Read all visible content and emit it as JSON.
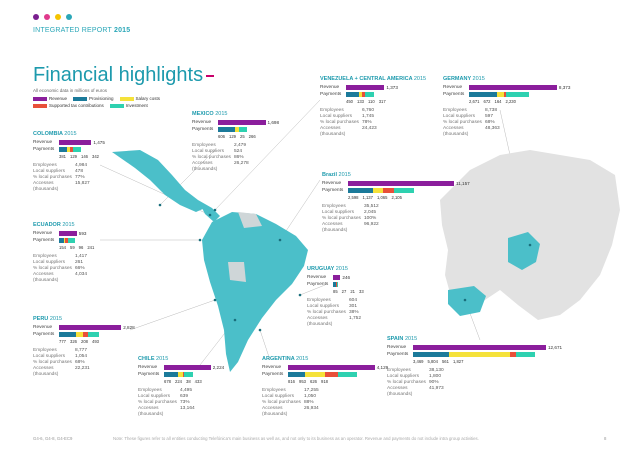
{
  "header": {
    "dots": [
      "#7a1f8f",
      "#e03a8c",
      "#f5c400",
      "#2aa7b8"
    ],
    "report_label": "INTEGRATED REPORT ",
    "report_year": "2015"
  },
  "title": "Financial highlights",
  "subtitle": "All economic data in millions of euros",
  "colors": {
    "revenue": "#8b1e9c",
    "provisioning": "#1b7a9a",
    "salary": "#f5e23a",
    "tax": "#e8503a",
    "investment": "#2ed1b0",
    "map_latam": "#4bbfc9",
    "map_europe": "#e2e2e2"
  },
  "legend": [
    {
      "key": "revenue",
      "label": "Revenue"
    },
    {
      "key": "provisioning",
      "label": "Provisioning"
    },
    {
      "key": "salary",
      "label": "Salary costs"
    },
    {
      "key": "tax",
      "label": "Supported tax contributions"
    },
    {
      "key": "investment",
      "label": "Investment"
    }
  ],
  "labels": {
    "revenue": "Revenue",
    "payments": "Payments",
    "employees": "Employees",
    "local_suppliers": "Local suppliers",
    "pct_local": "% local purchases",
    "accesses": "Accesses (thousands)"
  },
  "countries": [
    {
      "id": "colombia",
      "name": "COLOMBIA",
      "year": "2015",
      "revenue": "1,475",
      "revenue_value": 1475,
      "payments": [
        "381",
        "129",
        "146",
        "342"
      ],
      "payment_values": [
        381,
        129,
        146,
        342
      ],
      "stats": [
        "4,984",
        "478",
        "77%",
        "15,827"
      ]
    },
    {
      "id": "mexico",
      "name": "MEXICO",
      "year": "2015",
      "revenue": "1,698",
      "revenue_value": 1698,
      "payments": [
        "606",
        "129",
        "25",
        "266"
      ],
      "payment_values": [
        606,
        129,
        25,
        266
      ],
      "stats": [
        "2,479",
        "524",
        "86%",
        "26,278"
      ]
    },
    {
      "id": "venezuela",
      "name": "VENEZUELA + CENTRAL AMERICA",
      "year": "2015",
      "revenue": "1,373",
      "revenue_value": 1373,
      "payments": [
        "450",
        "133",
        "110",
        "317"
      ],
      "payment_values": [
        450,
        133,
        110,
        317
      ],
      "stats": [
        "6,760",
        "1,745",
        "78%",
        "24,423"
      ]
    },
    {
      "id": "germany",
      "name": "GERMANY",
      "year": "2015",
      "revenue": "8,373",
      "revenue_value": 8373,
      "payments": [
        "2,671",
        "672",
        "164",
        "2,230"
      ],
      "payment_values": [
        2671,
        672,
        164,
        2230
      ],
      "stats": [
        "8,738",
        "597",
        "68%",
        "48,363"
      ]
    },
    {
      "id": "ecuador",
      "name": "ECUADOR",
      "year": "2015",
      "revenue": "593",
      "revenue_value": 593,
      "payments": [
        "154",
        "59",
        "96",
        "241"
      ],
      "payment_values": [
        154,
        59,
        96,
        241
      ],
      "stats": [
        "1,417",
        "261",
        "66%",
        "4,034"
      ]
    },
    {
      "id": "brazil",
      "name": "Brazil",
      "year": "2015",
      "revenue": "11,157",
      "revenue_value": 11157,
      "payments": [
        "2,598",
        "1,137",
        "1,065",
        "2,105"
      ],
      "payment_values": [
        2598,
        1137,
        1065,
        2105
      ],
      "stats": [
        "35,512",
        "2,045",
        "100%",
        "96,922"
      ]
    },
    {
      "id": "uruguay",
      "name": "URUGUAY",
      "year": "2015",
      "revenue": "246",
      "revenue_value": 246,
      "payments": [
        "85",
        "27",
        "21",
        "33"
      ],
      "payment_values": [
        85,
        27,
        21,
        33
      ],
      "stats": [
        "604",
        "301",
        "38%",
        "1,752"
      ]
    },
    {
      "id": "peru",
      "name": "PERU",
      "year": "2015",
      "revenue": "2,828",
      "revenue_value": 2828,
      "payments": [
        "777",
        "326",
        "208",
        "493"
      ],
      "payment_values": [
        777,
        326,
        208,
        493
      ],
      "stats": [
        "8,777",
        "1,054",
        "68%",
        "22,231"
      ]
    },
    {
      "id": "chile",
      "name": "CHILE",
      "year": "2015",
      "revenue": "2,224",
      "revenue_value": 2224,
      "payments": [
        "678",
        "224",
        "38",
        "433"
      ],
      "payment_values": [
        678,
        224,
        38,
        433
      ],
      "stats": [
        "4,495",
        "639",
        "73%",
        "13,164"
      ]
    },
    {
      "id": "argentina",
      "name": "ARGENTINA",
      "year": "2015",
      "revenue": "4,129",
      "revenue_value": 4129,
      "payments": [
        "816",
        "953",
        "626",
        "918"
      ],
      "payment_values": [
        816,
        953,
        626,
        918
      ],
      "stats": [
        "17,255",
        "1,050",
        "88%",
        "26,934"
      ]
    },
    {
      "id": "spain",
      "name": "SPAIN",
      "year": "2015",
      "revenue": "12,671",
      "revenue_value": 12671,
      "payments": [
        "3,469",
        "5,804",
        "561",
        "1,827"
      ],
      "payment_values": [
        3469,
        5804,
        561,
        1827
      ],
      "stats": [
        "38,130",
        "1,800",
        "90%",
        "41,973"
      ]
    }
  ],
  "footer": {
    "left": "G4-6, G4-8, G4-EC9",
    "note": "Note: These figures refer to all entities conducting Telefónica's main business as well as, and not only to its business as an operator. Revenue and payments do not include intra group activities.",
    "page": "8"
  }
}
